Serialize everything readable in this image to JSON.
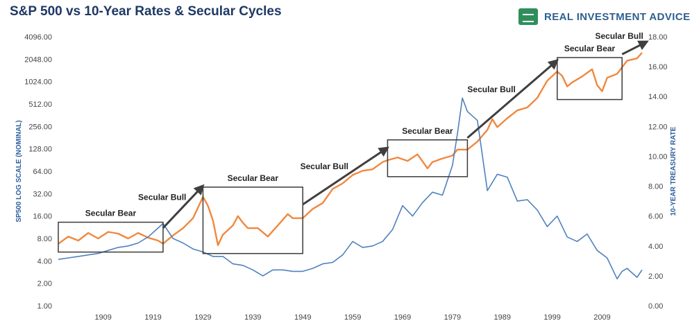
{
  "header": {
    "title": "S&P 500 vs 10-Year Rates & Secular Cycles",
    "logo_text": "REAL INVESTMENT ADVICE"
  },
  "colors": {
    "sp500": "#f0883e",
    "treasury": "#4f81bd",
    "brand": "#2f8f5b",
    "title": "#1f3864"
  },
  "chart_data": {
    "type": "line",
    "ylabel": "SP500 LOG SCALE (NOMINAL)",
    "y2label": "10-YEAR TREASURY RATE",
    "x_ticks": [
      "1909",
      "1919",
      "1929",
      "1939",
      "1949",
      "1959",
      "1969",
      "1979",
      "1989",
      "1999",
      "2009"
    ],
    "y_ticks_left": [
      "4096.00",
      "2048.00",
      "1024.00",
      "512.00",
      "256.00",
      "128.00",
      "64.00",
      "32.00",
      "16.00",
      "8.00",
      "4.00",
      "2.00",
      "1.00"
    ],
    "y_ticks_right": [
      "18.00",
      "16.00",
      "14.00",
      "12.00",
      "10.00",
      "8.00",
      "6.00",
      "4.00",
      "2.00",
      "0.00"
    ],
    "y_left_scale": "log2",
    "y_left_range": [
      1,
      4096
    ],
    "y_right_range": [
      0,
      18
    ],
    "x_range": [
      1900,
      2017
    ],
    "series": [
      {
        "axis": "left",
        "x": [
          1900,
          1902,
          1904,
          1906,
          1908,
          1910,
          1912,
          1914,
          1916,
          1918,
          1920,
          1921,
          1923,
          1925,
          1927,
          1929,
          1930,
          1931,
          1932,
          1933,
          1935,
          1936,
          1937,
          1938,
          1940,
          1942,
          1944,
          1946,
          1947,
          1949,
          1951,
          1953,
          1955,
          1957,
          1959,
          1961,
          1963,
          1965,
          1966,
          1968,
          1970,
          1972,
          1974,
          1975,
          1977,
          1979,
          1980,
          1982,
          1984,
          1986,
          1987,
          1988,
          1990,
          1992,
          1994,
          1996,
          1998,
          2000,
          2001,
          2002,
          2003,
          2005,
          2007,
          2008,
          2009,
          2010,
          2012,
          2014,
          2016,
          2017
        ],
        "y": [
          6.8,
          8.5,
          7.5,
          9.5,
          8,
          9.8,
          9.3,
          8,
          9.5,
          8.2,
          7.5,
          6.8,
          8.8,
          11,
          15,
          29,
          22,
          14,
          6.5,
          9,
          12,
          16,
          13,
          11,
          11,
          8.5,
          12,
          17,
          15,
          15,
          20,
          24,
          37,
          44,
          57,
          65,
          68,
          85,
          90,
          98,
          88,
          108,
          70,
          85,
          95,
          104,
          125,
          125,
          160,
          230,
          320,
          250,
          330,
          420,
          460,
          620,
          1050,
          1400,
          1220,
          880,
          1000,
          1200,
          1500,
          920,
          760,
          1150,
          1300,
          1950,
          2100,
          2500
        ]
      },
      {
        "axis": "right",
        "x": [
          1900,
          1902,
          1904,
          1906,
          1908,
          1910,
          1912,
          1914,
          1916,
          1918,
          1920,
          1921,
          1923,
          1925,
          1927,
          1929,
          1931,
          1933,
          1935,
          1937,
          1939,
          1941,
          1943,
          1945,
          1947,
          1949,
          1951,
          1953,
          1955,
          1957,
          1959,
          1961,
          1963,
          1965,
          1967,
          1969,
          1971,
          1973,
          1975,
          1977,
          1979,
          1980,
          1981,
          1982,
          1984,
          1986,
          1988,
          1990,
          1992,
          1994,
          1996,
          1998,
          2000,
          2002,
          2004,
          2006,
          2008,
          2010,
          2012,
          2013,
          2014,
          2016,
          2017
        ],
        "y": [
          3.1,
          3.2,
          3.3,
          3.4,
          3.5,
          3.7,
          3.9,
          4.0,
          4.2,
          4.6,
          5.2,
          5.5,
          4.5,
          4.2,
          3.8,
          3.6,
          3.3,
          3.3,
          2.8,
          2.7,
          2.4,
          2.0,
          2.4,
          2.4,
          2.3,
          2.3,
          2.5,
          2.8,
          2.9,
          3.4,
          4.3,
          3.9,
          4.0,
          4.3,
          5.1,
          6.7,
          6.0,
          6.9,
          7.6,
          7.4,
          9.4,
          11.5,
          13.9,
          13.0,
          12.4,
          7.7,
          8.8,
          8.6,
          7.0,
          7.1,
          6.4,
          5.3,
          6.0,
          4.6,
          4.3,
          4.8,
          3.7,
          3.2,
          1.8,
          2.3,
          2.5,
          1.9,
          2.4
        ]
      }
    ],
    "annotations": [
      {
        "label": "Secular Bear",
        "kind": "box",
        "x": [
          1900,
          1921
        ]
      },
      {
        "label": "Secular Bull",
        "kind": "arrow",
        "x": [
          1921,
          1929
        ]
      },
      {
        "label": "Secular Bear",
        "kind": "box",
        "x": [
          1929,
          1949
        ]
      },
      {
        "label": "Secular Bull",
        "kind": "arrow",
        "x": [
          1949,
          1966
        ]
      },
      {
        "label": "Secular Bear",
        "kind": "box",
        "x": [
          1966,
          1982
        ]
      },
      {
        "label": "Secular Bull",
        "kind": "arrow",
        "x": [
          1982,
          2000
        ]
      },
      {
        "label": "Secular Bear",
        "kind": "box",
        "x": [
          2000,
          2013
        ]
      },
      {
        "label": "Secular Bull",
        "kind": "arrow",
        "x": [
          2013,
          2018
        ]
      }
    ]
  }
}
